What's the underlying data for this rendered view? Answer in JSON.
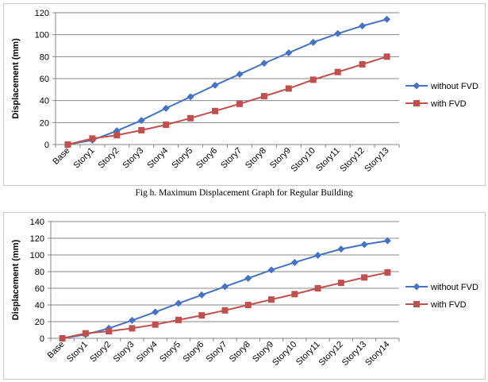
{
  "caption": "Fig h. Maximum Displacement Graph for Regular Building",
  "chart_data": [
    {
      "type": "line",
      "title": "",
      "xlabel": "",
      "ylabel": "Displacement (mm)",
      "ylim": [
        0,
        120
      ],
      "yticks": [
        0,
        20,
        40,
        60,
        80,
        100,
        120
      ],
      "grid": true,
      "legend_position": "right",
      "categories": [
        "Base",
        "Story1",
        "Story2",
        "Story3",
        "Story4",
        "Story5",
        "Story6",
        "Story7",
        "Story8",
        "Story9",
        "Story10",
        "Story11",
        "Story12",
        "Story13"
      ],
      "series": [
        {
          "name": "without FVD",
          "color": "#4472C4",
          "marker": "diamond",
          "values": [
            0,
            4,
            12.5,
            22,
            33,
            43.5,
            54,
            64,
            74,
            83.5,
            93,
            101,
            108,
            114
          ]
        },
        {
          "name": "with FVD",
          "color": "#C0504D",
          "marker": "square",
          "values": [
            0,
            5.5,
            8.5,
            13,
            18,
            24,
            30.5,
            37,
            44,
            51,
            59,
            66,
            73,
            80
          ]
        }
      ]
    },
    {
      "type": "line",
      "title": "",
      "xlabel": "",
      "ylabel": "Displacement (mm)",
      "ylim": [
        0,
        140
      ],
      "yticks": [
        0,
        20,
        40,
        60,
        80,
        100,
        120,
        140
      ],
      "grid": true,
      "legend_position": "right",
      "categories": [
        "Base",
        "Story1",
        "Story2",
        "Story3",
        "Story4",
        "Story5",
        "Story6",
        "Story7",
        "Story8",
        "Story9",
        "Story10",
        "Story11",
        "Story12",
        "Story13",
        "Story14"
      ],
      "series": [
        {
          "name": "without FVD",
          "color": "#4472C4",
          "marker": "diamond",
          "values": [
            0,
            4.5,
            12,
            21.5,
            31.5,
            42,
            52,
            62,
            72,
            82,
            91,
            99.5,
            107,
            112.5,
            117
          ]
        },
        {
          "name": "with FVD",
          "color": "#C0504D",
          "marker": "square",
          "values": [
            0,
            6,
            8.5,
            12,
            16.5,
            22,
            27.5,
            33.5,
            40,
            46.5,
            53,
            60,
            66.5,
            73,
            79
          ]
        }
      ]
    }
  ]
}
